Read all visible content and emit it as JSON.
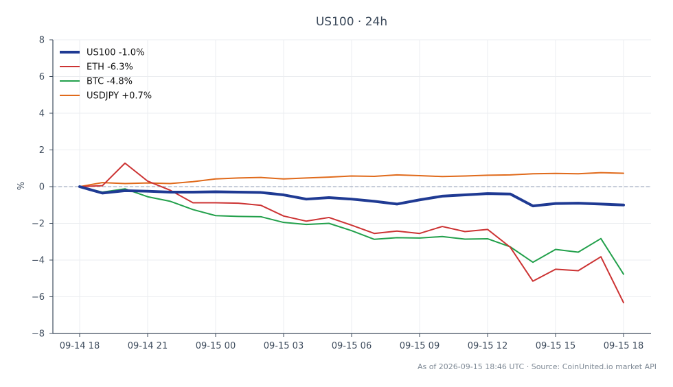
{
  "chart_data": {
    "type": "line",
    "title": "US100 · 24h",
    "xlabel": "",
    "ylabel": "%",
    "ylim": [
      -8,
      8
    ],
    "yticks": [
      -8,
      -6,
      -4,
      -2,
      0,
      2,
      4,
      6,
      8
    ],
    "xticks": [
      {
        "hour": 0,
        "label": "09-14 18"
      },
      {
        "hour": 3,
        "label": "09-14 21"
      },
      {
        "hour": 6,
        "label": "09-15 00"
      },
      {
        "hour": 9,
        "label": "09-15 03"
      },
      {
        "hour": 12,
        "label": "09-15 06"
      },
      {
        "hour": 15,
        "label": "09-15 09"
      },
      {
        "hour": 18,
        "label": "09-15 12"
      },
      {
        "hour": 21,
        "label": "09-15 15"
      },
      {
        "hour": 24,
        "label": "09-15 18"
      }
    ],
    "grid": true,
    "zero_line": true,
    "legend_position": "top-left",
    "x": [
      0,
      1,
      2,
      3,
      4,
      5,
      6,
      7,
      8,
      9,
      10,
      11,
      12,
      13,
      14,
      15,
      16,
      17,
      18,
      19,
      20,
      21,
      22,
      23,
      24
    ],
    "series": [
      {
        "name": "US100 -1.0%",
        "color": "#1f3a93",
        "emphasis": true,
        "values": [
          0.0,
          -0.35,
          -0.22,
          -0.25,
          -0.3,
          -0.3,
          -0.28,
          -0.3,
          -0.32,
          -0.45,
          -0.68,
          -0.6,
          -0.68,
          -0.8,
          -0.95,
          -0.72,
          -0.52,
          -0.45,
          -0.38,
          -0.4,
          -1.05,
          -0.92,
          -0.9,
          -0.95,
          -1.0
        ]
      },
      {
        "name": "ETH -6.3%",
        "color": "#cc3333",
        "emphasis": false,
        "values": [
          0.0,
          0.05,
          1.28,
          0.3,
          -0.2,
          -0.88,
          -0.88,
          -0.9,
          -1.02,
          -1.6,
          -1.88,
          -1.68,
          -2.1,
          -2.55,
          -2.42,
          -2.55,
          -2.17,
          -2.45,
          -2.33,
          -3.3,
          -5.15,
          -4.5,
          -4.58,
          -3.82,
          -6.32
        ]
      },
      {
        "name": "BTC -4.8%",
        "color": "#22a04b",
        "emphasis": false,
        "values": [
          0.0,
          -0.3,
          -0.12,
          -0.55,
          -0.8,
          -1.25,
          -1.58,
          -1.62,
          -1.64,
          -1.95,
          -2.06,
          -2.0,
          -2.4,
          -2.87,
          -2.78,
          -2.8,
          -2.72,
          -2.86,
          -2.84,
          -3.28,
          -4.12,
          -3.42,
          -3.57,
          -2.83,
          -4.77
        ]
      },
      {
        "name": "USDJPY +0.7%",
        "color": "#e06a1b",
        "emphasis": false,
        "values": [
          0.0,
          0.22,
          0.17,
          0.2,
          0.17,
          0.27,
          0.42,
          0.47,
          0.5,
          0.42,
          0.47,
          0.52,
          0.58,
          0.56,
          0.64,
          0.6,
          0.55,
          0.58,
          0.62,
          0.64,
          0.7,
          0.72,
          0.7,
          0.76,
          0.73
        ]
      }
    ],
    "footer": "As of 2026-09-15 18:46 UTC · Source: CoinUnited.io market API"
  }
}
